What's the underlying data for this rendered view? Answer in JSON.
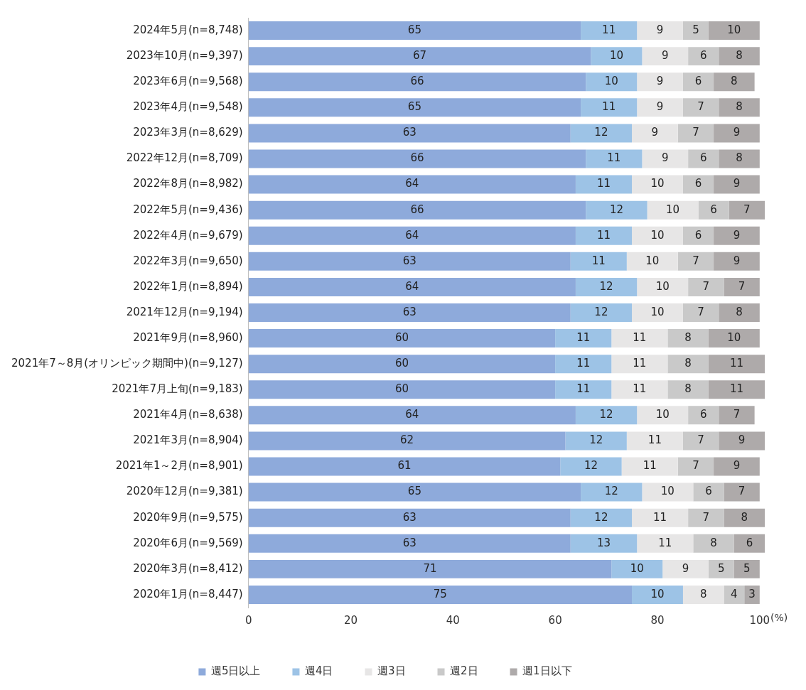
{
  "chart_data": {
    "type": "bar",
    "orientation": "horizontal",
    "stacked": true,
    "data_labels": true,
    "grid": false,
    "legend": "bottom",
    "xlabel": "(%)",
    "categories": [
      "2024年5月(n=8,748)",
      "2023年10月(n=9,397)",
      "2023年6月(n=9,568)",
      "2023年4月(n=9,548)",
      "2023年3月(n=8,629)",
      "2022年12月(n=8,709)",
      "2022年8月(n=8,982)",
      "2022年5月(n=9,436)",
      "2022年4月(n=9,679)",
      "2022年3月(n=9,650)",
      "2022年1月(n=8,894)",
      "2021年12月(n=9,194)",
      "2021年9月(n=8,960)",
      "2021年7～8月(オリンピック期間中)(n=9,127)",
      "2021年7月上旬(n=9,183)",
      "2021年4月(n=8,638)",
      "2021年3月(n=8,904)",
      "2021年1～2月(n=8,901)",
      "2020年12月(n=9,381)",
      "2020年9月(n=9,575)",
      "2020年6月(n=9,569)",
      "2020年3月(n=8,412)",
      "2020年1月(n=8,447)"
    ],
    "xlim": [
      0,
      101
    ],
    "xticks": [
      0,
      20,
      40,
      60,
      80,
      100
    ],
    "series": [
      {
        "name": "週5日以上",
        "color": "#8eaadb",
        "values": [
          65,
          67,
          66,
          65,
          63,
          66,
          64,
          66,
          64,
          63,
          64,
          63,
          60,
          60,
          60,
          64,
          62,
          61,
          65,
          63,
          63,
          71,
          75
        ]
      },
      {
        "name": "週4日",
        "color": "#9dc3e6",
        "values": [
          11,
          10,
          10,
          11,
          12,
          11,
          11,
          12,
          11,
          11,
          12,
          12,
          11,
          11,
          11,
          12,
          12,
          12,
          12,
          12,
          13,
          10,
          10
        ]
      },
      {
        "name": "週3日",
        "color": "#e7e6e6",
        "values": [
          9,
          9,
          9,
          9,
          9,
          9,
          10,
          10,
          10,
          10,
          10,
          10,
          11,
          11,
          11,
          10,
          11,
          11,
          10,
          11,
          11,
          9,
          8
        ]
      },
      {
        "name": "週2日",
        "color": "#c9c9c9",
        "values": [
          5,
          6,
          6,
          7,
          7,
          6,
          6,
          6,
          6,
          7,
          7,
          7,
          8,
          8,
          8,
          6,
          7,
          7,
          6,
          7,
          8,
          5,
          4
        ]
      },
      {
        "name": "週1日以下",
        "color": "#aeaaaa",
        "values": [
          10,
          8,
          8,
          8,
          9,
          8,
          9,
          7,
          9,
          9,
          7,
          8,
          10,
          11,
          11,
          7,
          9,
          9,
          7,
          8,
          6,
          5,
          3
        ]
      }
    ]
  }
}
